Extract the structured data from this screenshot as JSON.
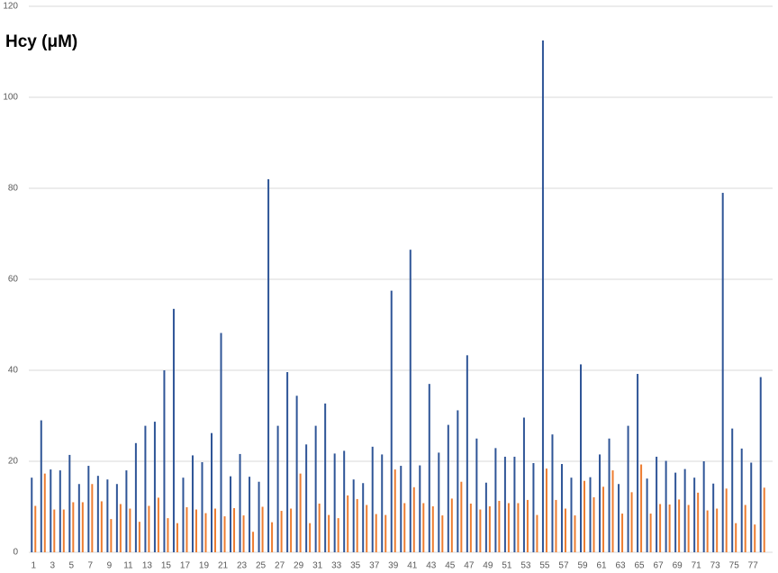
{
  "chart_data": {
    "type": "bar",
    "title": "Hcy (μM)",
    "categories": [
      "1",
      null,
      "3",
      null,
      "5",
      null,
      "7",
      null,
      "9",
      null,
      "11",
      null,
      "13",
      null,
      "15",
      null,
      "17",
      null,
      "19",
      null,
      "21",
      null,
      "23",
      null,
      "25",
      null,
      "27",
      null,
      "29",
      null,
      "31",
      null,
      "33",
      null,
      "35",
      null,
      "37",
      null,
      "39",
      null,
      "41",
      null,
      "43",
      null,
      "45",
      null,
      "47",
      null,
      "49",
      null,
      "51",
      null,
      "53",
      null,
      "55",
      null,
      "57",
      null,
      "59",
      null,
      "61",
      null,
      "63",
      null,
      "65",
      null,
      "67",
      null,
      "69",
      null,
      "71",
      null,
      "73",
      null,
      "75",
      null,
      "77",
      null
    ],
    "series": [
      {
        "color": "#2f5597",
        "values": [
          16.4,
          29,
          18.2,
          18,
          21.4,
          15,
          19,
          16.8,
          16,
          15,
          18,
          24,
          27.8,
          28.7,
          40,
          53.5,
          16.4,
          21.3,
          19.8,
          26.2,
          48.2,
          16.7,
          21.6,
          16.6,
          15.5,
          82,
          27.8,
          39.6,
          34.4,
          23.7,
          27.8,
          32.7,
          21.7,
          22.3,
          16,
          15.2,
          23.2,
          21.5,
          57.5,
          19,
          66.5,
          19.1,
          37,
          21.9,
          28,
          31.2,
          43.3,
          25,
          15.3,
          22.9,
          21,
          21,
          29.6,
          19.6,
          112.5,
          25.9,
          19.4,
          16.4,
          41.3,
          16.5,
          21.5,
          25,
          15,
          27.8,
          39.2,
          16.2,
          21,
          20.1,
          17.5,
          18.3,
          16.4,
          20,
          15.1,
          79,
          27.2,
          22.8,
          19.7,
          38.5
        ]
      },
      {
        "color": "#ed7d31",
        "values": [
          10.2,
          17.3,
          9.4,
          9.4,
          11,
          11,
          15,
          11.2,
          7.3,
          10.6,
          9.6,
          6.7,
          10.2,
          12,
          7.5,
          6.4,
          9.9,
          9.4,
          8.6,
          9.6,
          7.9,
          9.7,
          8.1,
          4.5,
          10,
          6.6,
          9.1,
          9.6,
          17.3,
          6.4,
          10.7,
          8.2,
          7.5,
          12.5,
          11.7,
          10.4,
          8.4,
          8.2,
          18.2,
          10.8,
          14.3,
          10.8,
          10.1,
          8.1,
          11.8,
          15.5,
          10.7,
          9.4,
          10.1,
          11.3,
          10.8,
          10.8,
          11.5,
          8.2,
          18.4,
          11.5,
          9.6,
          8.1,
          15.7,
          12.1,
          14.4,
          18,
          8.5,
          13.2,
          19.3,
          8.5,
          10.6,
          10.5,
          11.6,
          10.4,
          13.1,
          9.2,
          9.6,
          14,
          6.4,
          10.4,
          6.1,
          14.2
        ]
      }
    ],
    "ylim": [
      0,
      120
    ],
    "yticks": [
      0,
      20,
      40,
      60,
      80,
      100,
      120
    ],
    "grid": true
  }
}
